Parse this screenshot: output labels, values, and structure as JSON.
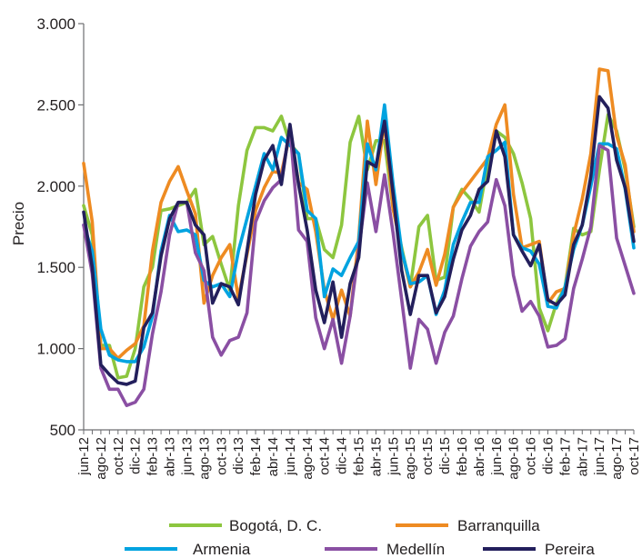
{
  "chart_data": {
    "type": "line",
    "title": "",
    "xlabel": "",
    "ylabel": "Precio",
    "ylim": [
      500,
      3000
    ],
    "yticks": [
      500,
      1000,
      1500,
      2000,
      2500,
      3000
    ],
    "ytick_labels": [
      "500",
      "1.000",
      "1.500",
      "2.000",
      "2.500",
      "3.000"
    ],
    "grid": false,
    "legend_position": "bottom",
    "x": [
      "jun-12",
      "jul-12",
      "ago-12",
      "sep-12",
      "oct-12",
      "nov-12",
      "dic-12",
      "ene-13",
      "feb-13",
      "mar-13",
      "abr-13",
      "may-13",
      "jun-13",
      "jul-13",
      "ago-13",
      "sep-13",
      "oct-13",
      "nov-13",
      "dic-13",
      "ene-14",
      "feb-14",
      "mar-14",
      "abr-14",
      "may-14",
      "jun-14",
      "jul-14",
      "ago-14",
      "sep-14",
      "oct-14",
      "nov-14",
      "dic-14",
      "ene-15",
      "feb-15",
      "mar-15",
      "abr-15",
      "may-15",
      "jun-15",
      "jul-15",
      "ago-15",
      "sep-15",
      "oct-15",
      "nov-15",
      "dic-15",
      "ene-16",
      "feb-16",
      "mar-16",
      "abr-16",
      "may-16",
      "jun-16",
      "jul-16",
      "ago-16",
      "sep-16",
      "oct-16",
      "nov-16",
      "dic-16",
      "ene-17",
      "feb-17",
      "mar-17",
      "abr-17",
      "may-17",
      "jun-17",
      "jul-17",
      "ago-17",
      "sep-17",
      "oct-17"
    ],
    "xtick_labels": [
      "jun-12",
      "ago-12",
      "oct-12",
      "dic-12",
      "feb-13",
      "abr-13",
      "jun-13",
      "ago-13",
      "oct-13",
      "dic-13",
      "feb-14",
      "abr-14",
      "jun-14",
      "ago-14",
      "oct-14",
      "dic-14",
      "feb-15",
      "abr-15",
      "jun-15",
      "ago-15",
      "oct-15",
      "dic-15",
      "feb-16",
      "abr-16",
      "jun-16",
      "ago-16",
      "oct-16",
      "dic-16",
      "feb-17",
      "abr-17",
      "jun-17",
      "ago-17",
      "oct-17"
    ],
    "series": [
      {
        "name": "Bogotá, D. C.",
        "color": "#8dc63f",
        "values": [
          1880,
          1700,
          1020,
          1020,
          820,
          830,
          1000,
          1380,
          1500,
          1850,
          1860,
          1880,
          1900,
          1980,
          1640,
          1690,
          1520,
          1360,
          1880,
          2220,
          2360,
          2360,
          2340,
          2430,
          2260,
          2200,
          1800,
          1800,
          1610,
          1560,
          1760,
          2270,
          2430,
          2100,
          2280,
          2280,
          1860,
          1620,
          1380,
          1750,
          1820,
          1420,
          1440,
          1870,
          1980,
          1920,
          1840,
          2140,
          2340,
          2300,
          2200,
          2020,
          1800,
          1250,
          1110,
          1280,
          1380,
          1740,
          1700,
          1720,
          2100,
          2440,
          2340,
          2100,
          1750
        ]
      },
      {
        "name": "Barranquilla",
        "color": "#ee8b22",
        "values": [
          2140,
          1780,
          1000,
          1000,
          940,
          990,
          1030,
          1140,
          1600,
          1900,
          2030,
          2120,
          1970,
          1830,
          1280,
          1450,
          1560,
          1640,
          1310,
          1580,
          1850,
          1990,
          2090,
          2080,
          2320,
          2020,
          1980,
          1720,
          1360,
          1180,
          1360,
          1200,
          1680,
          2400,
          2010,
          2400,
          1860,
          1600,
          1380,
          1470,
          1610,
          1390,
          1580,
          1870,
          1960,
          2030,
          2100,
          2170,
          2380,
          2500,
          1950,
          1620,
          1640,
          1660,
          1280,
          1350,
          1370,
          1700,
          1920,
          2200,
          2720,
          2710,
          2310,
          2130,
          1720
        ]
      },
      {
        "name": "Armenia",
        "color": "#00a3e0",
        "values": [
          1760,
          1600,
          1120,
          960,
          930,
          920,
          920,
          1010,
          1200,
          1600,
          1820,
          1720,
          1730,
          1700,
          1420,
          1380,
          1400,
          1320,
          1600,
          1800,
          2000,
          2200,
          2100,
          2300,
          2250,
          2200,
          1850,
          1800,
          1320,
          1490,
          1450,
          1560,
          1660,
          2260,
          2100,
          2500,
          2010,
          1600,
          1400,
          1410,
          1450,
          1210,
          1360,
          1640,
          1780,
          1900,
          1900,
          2180,
          2220,
          2270,
          1700,
          1620,
          1600,
          1520,
          1260,
          1250,
          1380,
          1610,
          1760,
          2000,
          2260,
          2260,
          2230,
          1980,
          1620
        ]
      },
      {
        "name": "Medellín",
        "color": "#8a4fa3",
        "values": [
          1760,
          1460,
          880,
          750,
          750,
          650,
          670,
          750,
          1090,
          1350,
          1700,
          1900,
          1900,
          1590,
          1480,
          1070,
          960,
          1050,
          1070,
          1220,
          1780,
          1910,
          1990,
          2040,
          2360,
          1730,
          1660,
          1190,
          1000,
          1180,
          910,
          1200,
          1610,
          2020,
          1720,
          2070,
          1710,
          1300,
          880,
          1180,
          1120,
          910,
          1100,
          1200,
          1430,
          1630,
          1720,
          1780,
          2040,
          1880,
          1450,
          1230,
          1290,
          1200,
          1010,
          1020,
          1060,
          1370,
          1550,
          1750,
          2250,
          2220,
          1680,
          1510,
          1340
        ]
      },
      {
        "name": "Pereira",
        "color": "#231f5c",
        "values": [
          1840,
          1500,
          900,
          840,
          790,
          780,
          800,
          1130,
          1220,
          1570,
          1800,
          1900,
          1900,
          1760,
          1700,
          1280,
          1400,
          1380,
          1270,
          1600,
          1950,
          2160,
          2250,
          2010,
          2380,
          2010,
          1730,
          1360,
          1160,
          1410,
          1070,
          1400,
          1560,
          2150,
          2120,
          2400,
          1950,
          1480,
          1210,
          1450,
          1450,
          1220,
          1320,
          1550,
          1730,
          1820,
          1980,
          2030,
          2340,
          2180,
          1700,
          1600,
          1510,
          1640,
          1300,
          1270,
          1330,
          1640,
          1760,
          2060,
          2550,
          2480,
          2160,
          1990,
          1660
        ]
      }
    ]
  }
}
